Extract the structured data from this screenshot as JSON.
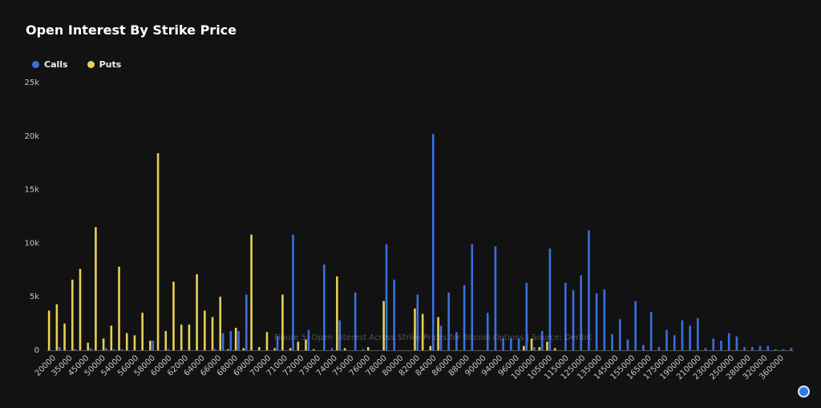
{
  "title": "Open Interest By Strike Price",
  "colors": {
    "calls": "#3b6fe0",
    "puts": "#e8cf55",
    "background": "#121212"
  },
  "legend": {
    "calls": "Calls",
    "puts": "Puts"
  },
  "chart_data": {
    "type": "bar",
    "title": "Open Interest By Strike Price",
    "ylim": [
      0,
      25000
    ],
    "yticks": [
      "0",
      "5k",
      "10k",
      "15k",
      "20k",
      "25k"
    ],
    "ytick_values": [
      0,
      5000,
      10000,
      15000,
      20000,
      25000
    ],
    "xtick_labels": [
      "20000",
      "35000",
      "45000",
      "50000",
      "54000",
      "56000",
      "58000",
      "60000",
      "62000",
      "64000",
      "66000",
      "68000",
      "69000",
      "70000",
      "71000",
      "72000",
      "73000",
      "74000",
      "75000",
      "76000",
      "78000",
      "80000",
      "82000",
      "84000",
      "86000",
      "88000",
      "90000",
      "94000",
      "96000",
      "100000",
      "105000",
      "115000",
      "125000",
      "135000",
      "145000",
      "155000",
      "165000",
      "175000",
      "190000",
      "210000",
      "230000",
      "250000",
      "280000",
      "320000",
      "360000"
    ],
    "series": [
      {
        "name": "Calls",
        "values": [
          0,
          300,
          0,
          100,
          0,
          200,
          0,
          200,
          100,
          100,
          0,
          0,
          0,
          900,
          0,
          100,
          0,
          0,
          0,
          0,
          0,
          100,
          1600,
          1800,
          1800,
          5200,
          0,
          0,
          0,
          1300,
          0,
          10800,
          0,
          1900,
          0,
          8000,
          200,
          2800,
          0,
          5400,
          100,
          0,
          0,
          9900,
          6600,
          0,
          0,
          5200,
          0,
          20200,
          2300,
          5400,
          1700,
          6100,
          9900,
          0,
          3500,
          9700,
          1100,
          1100,
          1100,
          6300,
          300,
          1800,
          9500,
          0,
          6300,
          5600,
          7000,
          11200,
          5300,
          5700,
          1500,
          2900,
          1000,
          4600,
          500,
          3600,
          300,
          1900,
          1400,
          2800,
          2300,
          3000,
          200,
          1100,
          900,
          1600,
          1300,
          300,
          300,
          400,
          400,
          100,
          100,
          200
        ]
      },
      {
        "name": "Puts",
        "values": [
          3700,
          4300,
          2500,
          6600,
          7600,
          700,
          11500,
          1100,
          2300,
          7800,
          1600,
          1400,
          3500,
          900,
          18400,
          1800,
          6400,
          2400,
          2400,
          7100,
          3700,
          3100,
          5000,
          100,
          2100,
          200,
          10800,
          300,
          1700,
          200,
          5200,
          200,
          800,
          1000,
          100,
          0,
          0,
          6900,
          200,
          0,
          0,
          300,
          0,
          4600,
          0,
          0,
          0,
          3900,
          3400,
          400,
          3100,
          0,
          0,
          0,
          0,
          0,
          0,
          0,
          0,
          0,
          0,
          400,
          1100,
          300,
          800,
          200,
          0,
          0,
          0,
          0,
          0,
          0,
          0,
          0,
          0,
          0,
          0,
          0,
          0,
          0,
          0,
          0,
          0,
          0,
          0,
          0,
          0,
          0,
          0,
          0,
          0,
          0,
          0,
          0,
          0,
          0
        ]
      }
    ]
  },
  "overlay_text": "Figure 5: Open Interest Across Strike Prices for Bitcoin Options | Source: Deribit"
}
